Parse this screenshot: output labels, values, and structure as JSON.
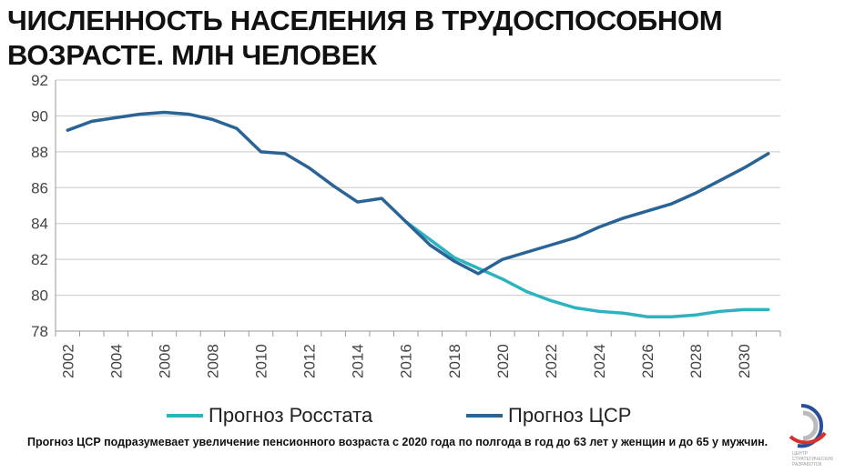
{
  "title": "ЧИСЛЕННОСТЬ НАСЕЛЕНИЯ В ТРУДОСПОСОБНОМ ВОЗРАСТЕ. МЛН ЧЕЛОВЕК",
  "note": "Прогноз ЦСР подразумевает увеличение пенсионного возраста с 2020 года по полгода в год до 63 лет у женщин и до 65 у мужчин.",
  "logo_text": "ЦЕНТР СТРАТЕГИЧЕСКИХ РАЗРАБОТОК",
  "chart_data": {
    "type": "line",
    "title": "ЧИСЛЕННОСТЬ НАСЕЛЕНИЯ В ТРУДОСПОСОБНОМ ВОЗРАСТЕ. МЛН ЧЕЛОВЕК",
    "x": [
      2002,
      2003,
      2004,
      2005,
      2006,
      2007,
      2008,
      2009,
      2010,
      2011,
      2012,
      2013,
      2014,
      2015,
      2016,
      2017,
      2018,
      2019,
      2020,
      2021,
      2022,
      2023,
      2024,
      2025,
      2026,
      2027,
      2028,
      2029,
      2030,
      2031
    ],
    "x_tick_labels": [
      "2002",
      "2004",
      "2006",
      "2008",
      "2010",
      "2012",
      "2014",
      "2016",
      "2018",
      "2020",
      "2022",
      "2024",
      "2026",
      "2028",
      "2030"
    ],
    "y_tick_labels": [
      "78",
      "80",
      "82",
      "84",
      "86",
      "88",
      "90",
      "92"
    ],
    "ylim": [
      78,
      92
    ],
    "grid": true,
    "legend_position": "bottom",
    "series": [
      {
        "name": "Прогноз Росстата",
        "color": "#2bb3c0",
        "values": [
          null,
          null,
          null,
          null,
          null,
          null,
          null,
          null,
          null,
          null,
          null,
          null,
          null,
          null,
          84.1,
          83.1,
          82.1,
          81.5,
          80.9,
          80.2,
          79.7,
          79.3,
          79.1,
          79.0,
          78.8,
          78.8,
          78.9,
          79.1,
          79.2,
          79.2
        ]
      },
      {
        "name": "Прогноз ЦСР",
        "color": "#2a6496",
        "values": [
          89.2,
          89.7,
          89.9,
          90.1,
          90.2,
          90.1,
          89.8,
          89.3,
          88.0,
          87.9,
          87.1,
          86.1,
          85.2,
          85.4,
          84.1,
          82.8,
          81.9,
          81.2,
          82.0,
          82.4,
          82.8,
          83.2,
          83.8,
          84.3,
          84.7,
          85.1,
          85.7,
          86.4,
          87.1,
          87.9
        ]
      }
    ]
  }
}
